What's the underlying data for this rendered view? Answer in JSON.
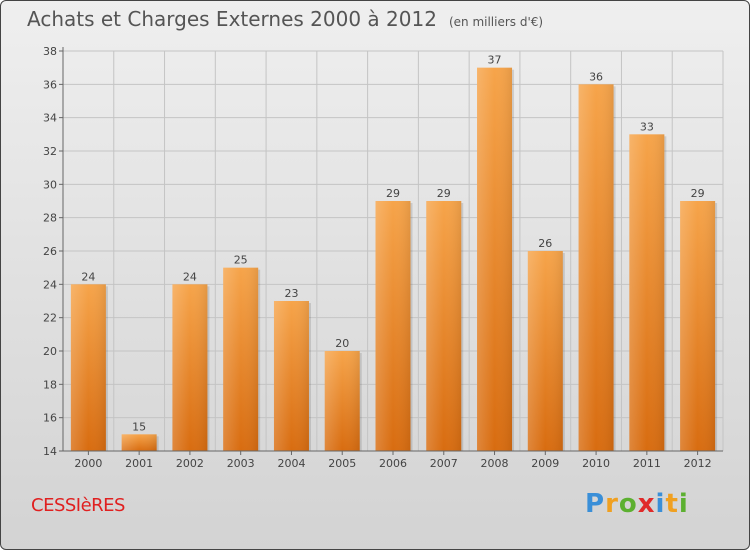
{
  "title": "Achats et Charges Externes 2000 à 2012",
  "subtitle": "(en milliers d'€)",
  "commune": "CESSIèRES",
  "logo": {
    "letters": [
      "P",
      "r",
      "o",
      "x",
      "i",
      "t",
      "i"
    ],
    "colors": [
      "#3a8fd8",
      "#f0a020",
      "#5cb030",
      "#e02a2a",
      "#3a8fd8",
      "#f0a020",
      "#5cb030"
    ]
  },
  "chart_data": {
    "type": "bar",
    "categories": [
      "2000",
      "2001",
      "2002",
      "2003",
      "2004",
      "2005",
      "2006",
      "2007",
      "2008",
      "2009",
      "2010",
      "2011",
      "2012"
    ],
    "values": [
      24,
      15,
      24,
      25,
      23,
      20,
      29,
      29,
      37,
      26,
      36,
      33,
      29
    ],
    "ylim": [
      14,
      38
    ],
    "yticks": [
      14,
      16,
      18,
      20,
      22,
      24,
      26,
      28,
      30,
      32,
      34,
      36,
      38
    ],
    "grid": true,
    "bar_color": "#f0902a"
  }
}
